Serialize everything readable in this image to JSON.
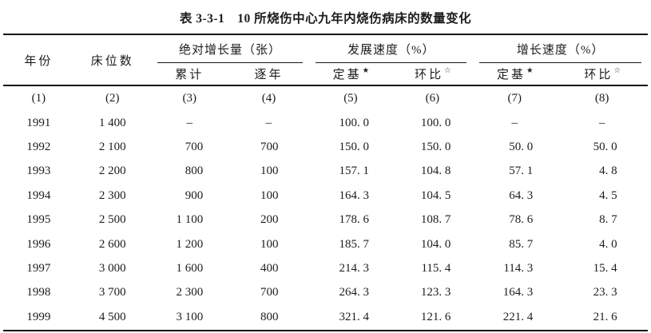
{
  "title": "表 3-3-1　10 所烧伤中心九年内烧伤病床的数量变化",
  "table": {
    "headers": {
      "year": "年份",
      "beds": "床位数",
      "groups": [
        {
          "label": "绝对增长量（张）",
          "subs": [
            {
              "label": "累计",
              "mark": ""
            },
            {
              "label": "逐年",
              "mark": ""
            }
          ]
        },
        {
          "label": "发展速度（%）",
          "subs": [
            {
              "label": "定基",
              "mark": "★"
            },
            {
              "label": "环比",
              "mark": "☆"
            }
          ]
        },
        {
          "label": "增长速度（%）",
          "subs": [
            {
              "label": "定基",
              "mark": "★"
            },
            {
              "label": "环比",
              "mark": "☆"
            }
          ]
        }
      ]
    },
    "column_numbers": [
      "(1)",
      "(2)",
      "(3)",
      "(4)",
      "(5)",
      "(6)",
      "(7)",
      "(8)"
    ],
    "rows": [
      [
        "1991",
        "1 400",
        "–",
        "–",
        "100. 0",
        "100. 0",
        "–",
        "–"
      ],
      [
        "1992",
        "2 100",
        "700",
        "700",
        "150. 0",
        "150. 0",
        "50. 0",
        "50. 0"
      ],
      [
        "1993",
        "2 200",
        "800",
        "100",
        "157. 1",
        "104. 8",
        "57. 1",
        "4. 8"
      ],
      [
        "1994",
        "2 300",
        "900",
        "100",
        "164. 3",
        "104. 5",
        "64. 3",
        "4. 5"
      ],
      [
        "1995",
        "2 500",
        "1 100",
        "200",
        "178. 6",
        "108. 7",
        "78. 6",
        "8. 7"
      ],
      [
        "1996",
        "2 600",
        "1 200",
        "100",
        "185. 7",
        "104. 0",
        "85. 7",
        "4. 0"
      ],
      [
        "1997",
        "3 000",
        "1 600",
        "400",
        "214. 3",
        "115. 4",
        "114. 3",
        "15. 4"
      ],
      [
        "1998",
        "3 700",
        "2 300",
        "700",
        "264. 3",
        "123. 3",
        "164. 3",
        "23. 3"
      ],
      [
        "1999",
        "4 500",
        "3 100",
        "800",
        "321. 4",
        "121. 6",
        "221. 4",
        "21. 6"
      ]
    ]
  },
  "colors": {
    "text": "#1c1c1c",
    "rule": "#161616",
    "background": "#ffffff"
  }
}
